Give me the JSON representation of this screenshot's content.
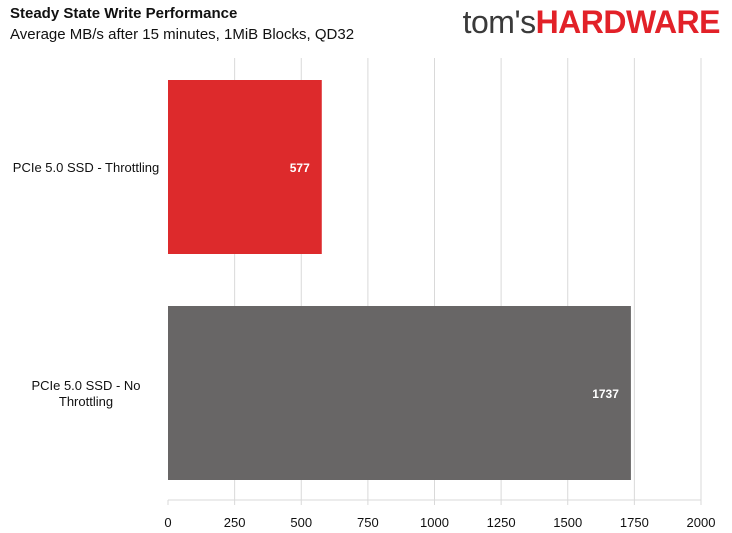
{
  "header": {
    "title": "Steady State Write Performance",
    "subtitle": "Average MB/s after 15 minutes, 1MiB Blocks, QD32",
    "logo_part1": "tom's",
    "logo_part2": "HARDWARE"
  },
  "colors": {
    "throttling": "#dd2a2c",
    "no_throttling": "#686666",
    "grid": "#d9d9d9",
    "logo_red": "#e22128"
  },
  "chart_data": {
    "type": "bar",
    "orientation": "horizontal",
    "title": "Steady State Write Performance",
    "subtitle": "Average MB/s after 15 minutes, 1MiB Blocks, QD32",
    "categories": [
      "PCIe 5.0 SSD - Throttling",
      "PCIe 5.0 SSD - No Throttling"
    ],
    "category_lines": [
      [
        "PCIe 5.0 SSD - Throttling"
      ],
      [
        "PCIe 5.0 SSD - No",
        "Throttling"
      ]
    ],
    "values": [
      577,
      1737
    ],
    "data_labels": [
      "577",
      "1737"
    ],
    "bar_colors": [
      "#dd2a2c",
      "#686666"
    ],
    "xlim": [
      0,
      2000
    ],
    "xticks": [
      0,
      250,
      500,
      750,
      1000,
      1250,
      1500,
      1750,
      2000
    ],
    "grid": true,
    "legend": "none"
  }
}
